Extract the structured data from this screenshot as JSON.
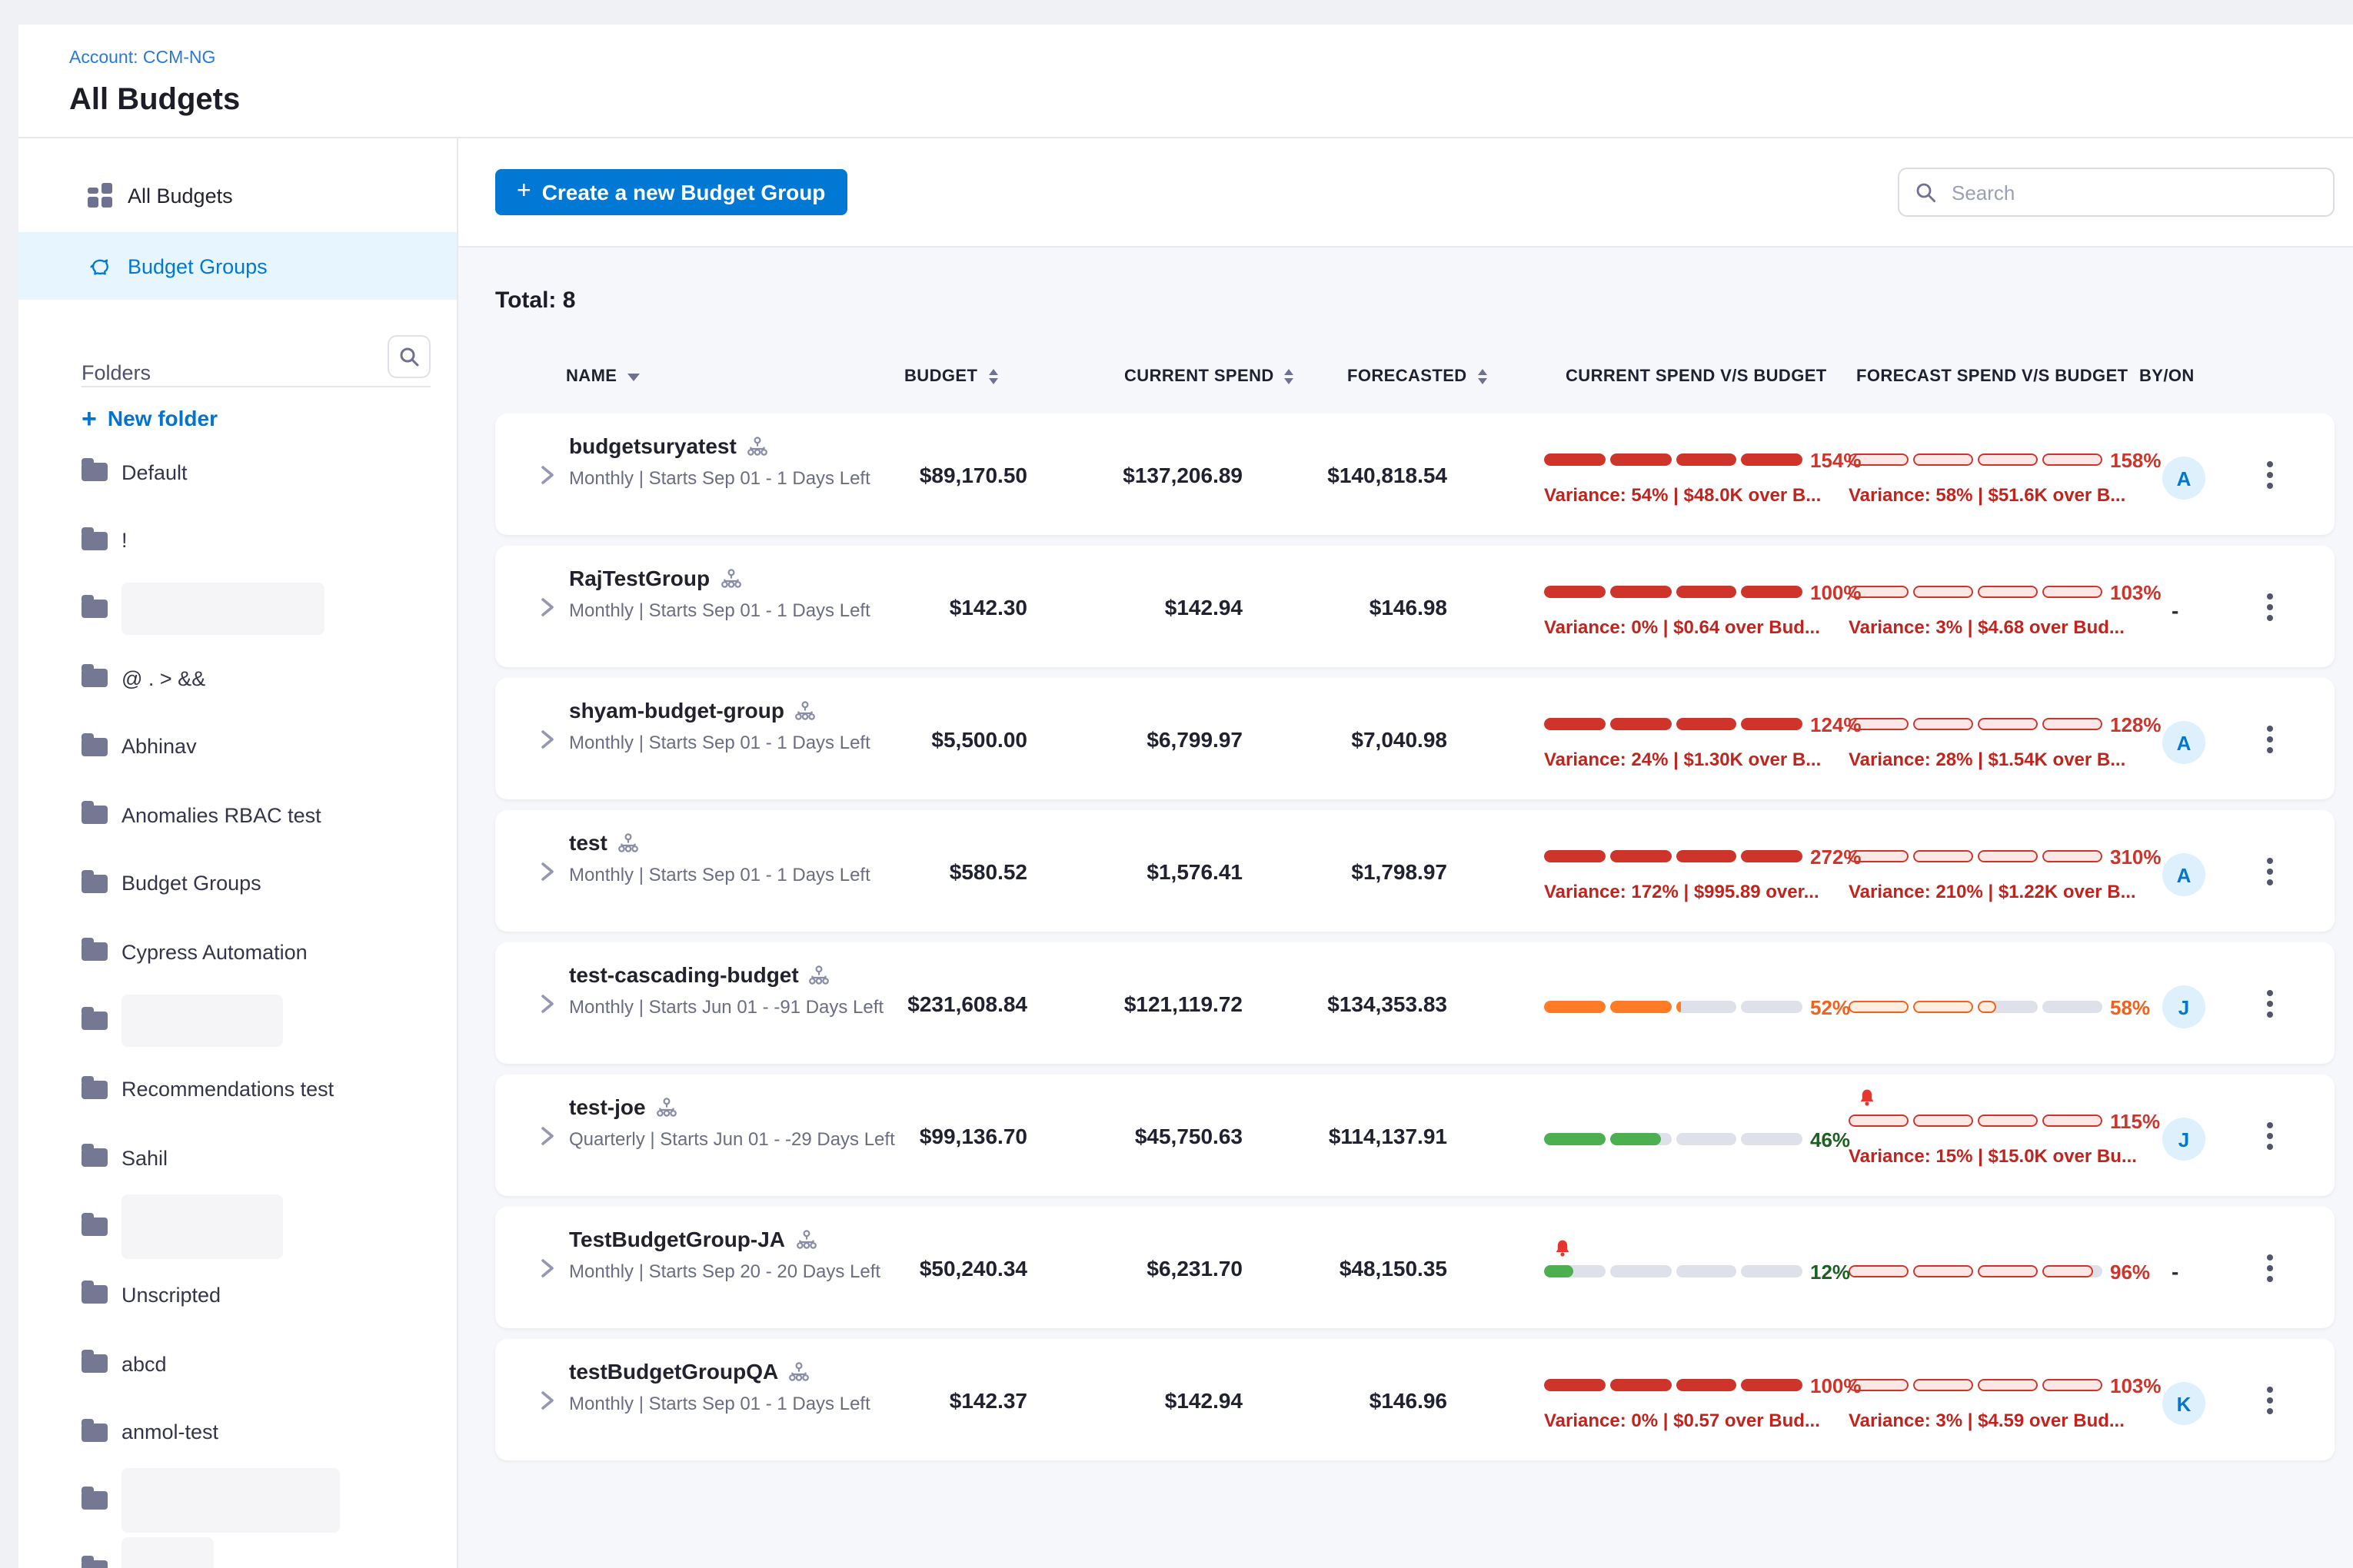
{
  "colors": {
    "accent_blue": "#0278d5",
    "over_budget_red": "#cf342b",
    "warning_orange": "#ff7b26",
    "ok_green": "#4caf50",
    "selected_nav_bg": "#e6f5fe",
    "avatar_bg": "#ddf0fc"
  },
  "header": {
    "breadcrumb": "Account: CCM-NG",
    "title": "All Budgets"
  },
  "sidebar": {
    "nav": [
      {
        "label": "All Budgets",
        "icon": "grid-icon",
        "selected": false
      },
      {
        "label": "Budget Groups",
        "icon": "piggy-bank-icon",
        "selected": true
      }
    ],
    "folders_title": "Folders",
    "new_folder_label": "New folder",
    "folders": [
      {
        "label": "Default"
      },
      {
        "label": "!"
      },
      {
        "placeholder": true,
        "w": 132
      },
      {
        "label": "@ . > &&"
      },
      {
        "label": "Abhinav"
      },
      {
        "label": "Anomalies RBAC test"
      },
      {
        "label": "Budget Groups"
      },
      {
        "label": "Cypress Automation"
      },
      {
        "placeholder": true,
        "w": 105
      },
      {
        "label": "Recommendations test"
      },
      {
        "label": "Sahil"
      },
      {
        "placeholder": true,
        "w": 105,
        "tall": true
      },
      {
        "label": "Unscripted"
      },
      {
        "label": "abcd"
      },
      {
        "label": "anmol-test"
      },
      {
        "placeholder": true,
        "w": 142,
        "tall": true
      },
      {
        "placeholder": true,
        "w": 60,
        "tall": true
      }
    ]
  },
  "toolbar": {
    "create_button": "Create a new Budget Group",
    "search_placeholder": "Search"
  },
  "table": {
    "total": "Total: 8",
    "columns": [
      "NAME",
      "BUDGET",
      "CURRENT SPEND",
      "FORECASTED",
      "CURRENT SPEND V/S BUDGET",
      "FORECAST SPEND V/S BUDGET",
      "BY/ON"
    ],
    "rows": [
      {
        "name": "budgetsuryatest",
        "period": "Monthly | Starts Sep 01 - 1 Days Left",
        "budget": "$89,170.50",
        "current_spend": "$137,206.89",
        "forecasted": "$140,818.54",
        "current_bar": {
          "pct": 154,
          "label": "154%",
          "color": "red",
          "style": "solid",
          "variance": "Variance: 54% | $48.0K over B..."
        },
        "forecast_bar": {
          "pct": 158,
          "label": "158%",
          "color": "red",
          "style": "outline",
          "variance": "Variance: 58% | $51.6K over B..."
        },
        "by": "A"
      },
      {
        "name": "RajTestGroup",
        "period": "Monthly | Starts Sep 01 - 1 Days Left",
        "budget": "$142.30",
        "current_spend": "$142.94",
        "forecasted": "$146.98",
        "current_bar": {
          "pct": 100,
          "label": "100%",
          "color": "red",
          "style": "solid",
          "variance": "Variance: 0% | $0.64 over Bud..."
        },
        "forecast_bar": {
          "pct": 103,
          "label": "103%",
          "color": "red",
          "style": "outline",
          "variance": "Variance: 3% | $4.68 over Bud..."
        },
        "by": "-"
      },
      {
        "name": "shyam-budget-group",
        "period": "Monthly | Starts Sep 01 - 1 Days Left",
        "budget": "$5,500.00",
        "current_spend": "$6,799.97",
        "forecasted": "$7,040.98",
        "current_bar": {
          "pct": 124,
          "label": "124%",
          "color": "red",
          "style": "solid",
          "variance": "Variance: 24% | $1.30K over B..."
        },
        "forecast_bar": {
          "pct": 128,
          "label": "128%",
          "color": "red",
          "style": "outline",
          "variance": "Variance: 28% | $1.54K over B..."
        },
        "by": "A"
      },
      {
        "name": "test",
        "period": "Monthly | Starts Sep 01 - 1 Days Left",
        "budget": "$580.52",
        "current_spend": "$1,576.41",
        "forecasted": "$1,798.97",
        "current_bar": {
          "pct": 272,
          "label": "272%",
          "color": "red",
          "style": "solid",
          "variance": "Variance: 172% | $995.89 over..."
        },
        "forecast_bar": {
          "pct": 310,
          "label": "310%",
          "color": "red",
          "style": "outline",
          "variance": "Variance: 210% | $1.22K over B..."
        },
        "by": "A"
      },
      {
        "name": "test-cascading-budget",
        "period": "Monthly | Starts Jun 01 - -91 Days Left",
        "budget": "$231,608.84",
        "current_spend": "$121,119.72",
        "forecasted": "$134,353.83",
        "current_bar": {
          "pct": 52,
          "label": "52%",
          "color": "orange",
          "style": "solid"
        },
        "forecast_bar": {
          "pct": 58,
          "label": "58%",
          "color": "orange",
          "style": "outline"
        },
        "by": "J"
      },
      {
        "name": "test-joe",
        "period": "Quarterly | Starts Jun 01 - -29 Days Left",
        "budget": "$99,136.70",
        "current_spend": "$45,750.63",
        "forecasted": "$114,137.91",
        "current_bar": {
          "pct": 46,
          "label": "46%",
          "color": "green",
          "style": "solid"
        },
        "forecast_bar": {
          "pct": 115,
          "label": "115%",
          "color": "red",
          "style": "outline",
          "variance": "Variance: 15% | $15.0K over Bu...",
          "bell": true
        },
        "by": "J"
      },
      {
        "name": "TestBudgetGroup-JA",
        "period": "Monthly | Starts Sep 20 - 20 Days Left",
        "budget": "$50,240.34",
        "current_spend": "$6,231.70",
        "forecasted": "$48,150.35",
        "current_bar": {
          "pct": 12,
          "label": "12%",
          "color": "green",
          "style": "solid",
          "bell": true
        },
        "forecast_bar": {
          "pct": 96,
          "label": "96%",
          "color": "red",
          "style": "outline"
        },
        "by": "-"
      },
      {
        "name": "testBudgetGroupQA",
        "period": "Monthly | Starts Sep 01 - 1 Days Left",
        "budget": "$142.37",
        "current_spend": "$142.94",
        "forecasted": "$146.96",
        "current_bar": {
          "pct": 100,
          "label": "100%",
          "color": "red",
          "style": "solid",
          "variance": "Variance: 0% | $0.57 over Bud..."
        },
        "forecast_bar": {
          "pct": 103,
          "label": "103%",
          "color": "red",
          "style": "outline",
          "variance": "Variance: 3% | $4.59 over Bud..."
        },
        "by": "K"
      }
    ]
  }
}
